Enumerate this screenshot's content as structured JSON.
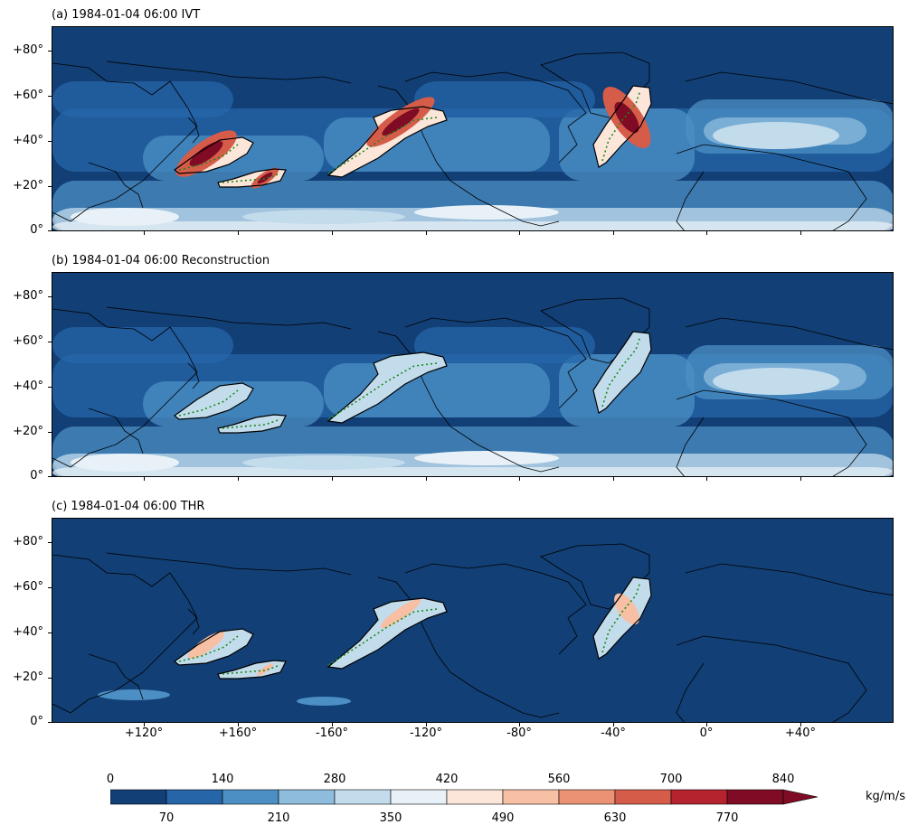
{
  "panels": [
    {
      "title": "(a) 1984-01-04 06:00 IVT",
      "kind": "ivt"
    },
    {
      "title": "(b) 1984-01-04 06:00 Reconstruction",
      "kind": "recon"
    },
    {
      "title": "(c) 1984-01-04 06:00 THR",
      "kind": "thr"
    }
  ],
  "axes": {
    "y_ticks": [
      "+80°",
      "+60°",
      "+40°",
      "+20°",
      "0°"
    ],
    "x_ticks": [
      "+120°",
      "+160°",
      "-160°",
      "-120°",
      "-80°",
      "-40°",
      "0°",
      "+40°"
    ]
  },
  "colorbar": {
    "top_labels": [
      "0",
      "140",
      "280",
      "420",
      "560",
      "700",
      "840"
    ],
    "bottom_labels": [
      "70",
      "210",
      "350",
      "490",
      "630",
      "770"
    ],
    "unit": "kg/m/s",
    "colors": [
      "#123f75",
      "#2565a8",
      "#4b8fc4",
      "#8dbcdc",
      "#c3dcec",
      "#e8f1f7",
      "#fce6da",
      "#f7bfa3",
      "#ec9274",
      "#d65c4a",
      "#b5232e",
      "#800b24"
    ],
    "extend": "max"
  },
  "map_colors": {
    "ocean_deep": "#123f75",
    "background": "#1b4f8a",
    "ar_contour": "#000000",
    "ar_axis": "#1a8a1a"
  }
}
